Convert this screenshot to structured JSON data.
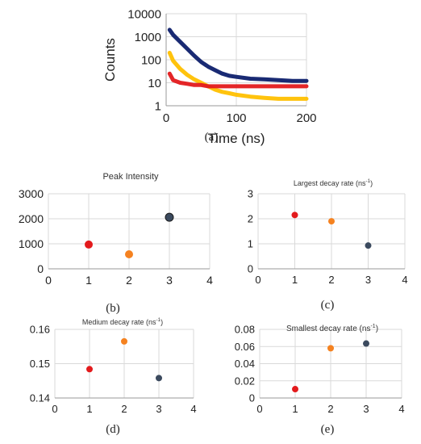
{
  "chart_data": [
    {
      "id": "a",
      "type": "line",
      "xlabel": "Time (ns)",
      "ylabel": "Counts",
      "xlim": [
        0,
        200
      ],
      "ylim": [
        1,
        10000
      ],
      "yscale": "log",
      "x_ticks": [
        "0",
        "100",
        "200"
      ],
      "y_ticks": [
        "1",
        "10",
        "100",
        "1000",
        "10000"
      ],
      "grid": true,
      "series": [
        {
          "color": "#0d1f6b",
          "x": [
            5,
            10,
            20,
            30,
            40,
            50,
            60,
            70,
            80,
            90,
            100,
            120,
            140,
            160,
            180,
            200
          ],
          "y": [
            2000,
            1200,
            600,
            300,
            150,
            80,
            50,
            35,
            25,
            20,
            18,
            15,
            14,
            13,
            12,
            12
          ]
        },
        {
          "color": "#ffc000",
          "x": [
            5,
            10,
            20,
            30,
            40,
            50,
            60,
            70,
            80,
            90,
            100,
            120,
            140,
            160,
            180,
            200
          ],
          "y": [
            200,
            90,
            40,
            22,
            14,
            10,
            7,
            5,
            4,
            3.5,
            3,
            2.5,
            2.2,
            2,
            2,
            2
          ]
        },
        {
          "color": "#e31a1c",
          "x": [
            5,
            10,
            20,
            30,
            40,
            50,
            60,
            80,
            100,
            120,
            140,
            160,
            180,
            200
          ],
          "y": [
            25,
            13,
            10,
            9,
            8,
            8,
            7,
            7,
            7,
            7,
            7,
            7,
            7,
            7
          ]
        }
      ],
      "caption": "(a)"
    },
    {
      "id": "b",
      "type": "scatter",
      "title": "Peak Intensity",
      "xlim": [
        0,
        4
      ],
      "ylim": [
        0,
        3000
      ],
      "x_ticks": [
        "0",
        "1",
        "2",
        "3",
        "4"
      ],
      "y_ticks": [
        "0",
        "1000",
        "2000",
        "3000"
      ],
      "grid": true,
      "points": [
        {
          "x": 1,
          "y": 970,
          "color": "#e31a1c"
        },
        {
          "x": 2,
          "y": 580,
          "color": "#f58220"
        },
        {
          "x": 3,
          "y": 2060,
          "color": "#3b4a5e"
        }
      ],
      "caption": "(b)"
    },
    {
      "id": "c",
      "type": "scatter",
      "title": "Largest decay rate (ns",
      "title_sup": "-1",
      "title_end": ")",
      "xlim": [
        0,
        4
      ],
      "ylim": [
        0,
        3
      ],
      "x_ticks": [
        "0",
        "1",
        "2",
        "3",
        "4"
      ],
      "y_ticks": [
        "0",
        "1",
        "2",
        "3"
      ],
      "grid": true,
      "points": [
        {
          "x": 1,
          "y": 2.15,
          "color": "#e31a1c"
        },
        {
          "x": 2,
          "y": 1.9,
          "color": "#f58220"
        },
        {
          "x": 3,
          "y": 0.93,
          "color": "#3b4a5e"
        }
      ],
      "caption": "(c)"
    },
    {
      "id": "d",
      "type": "scatter",
      "title": "Medium decay rate (ns",
      "title_sup": "-1",
      "title_end": ")",
      "xlim": [
        0,
        4
      ],
      "ylim": [
        0.14,
        0.16
      ],
      "x_ticks": [
        "0",
        "1",
        "2",
        "3",
        "4"
      ],
      "y_ticks": [
        "0.14",
        "0.15",
        "0.16"
      ],
      "grid": true,
      "points": [
        {
          "x": 1,
          "y": 0.1484,
          "color": "#e31a1c"
        },
        {
          "x": 2,
          "y": 0.1565,
          "color": "#f58220"
        },
        {
          "x": 3,
          "y": 0.1458,
          "color": "#3b4a5e"
        }
      ],
      "caption": "(d)"
    },
    {
      "id": "e",
      "type": "scatter",
      "title": "Smallest decay rate (ns",
      "title_sup": "-1",
      "title_end": ")",
      "xlim": [
        0,
        4
      ],
      "ylim": [
        0,
        0.08
      ],
      "x_ticks": [
        "0",
        "1",
        "2",
        "3",
        "4"
      ],
      "y_ticks": [
        "0",
        "0.02",
        "0.04",
        "0.06",
        "0.08"
      ],
      "grid": true,
      "points": [
        {
          "x": 1,
          "y": 0.0103,
          "color": "#e31a1c"
        },
        {
          "x": 2,
          "y": 0.058,
          "color": "#f58220"
        },
        {
          "x": 3,
          "y": 0.0635,
          "color": "#3b4a5e"
        }
      ],
      "caption": "(e)"
    }
  ]
}
